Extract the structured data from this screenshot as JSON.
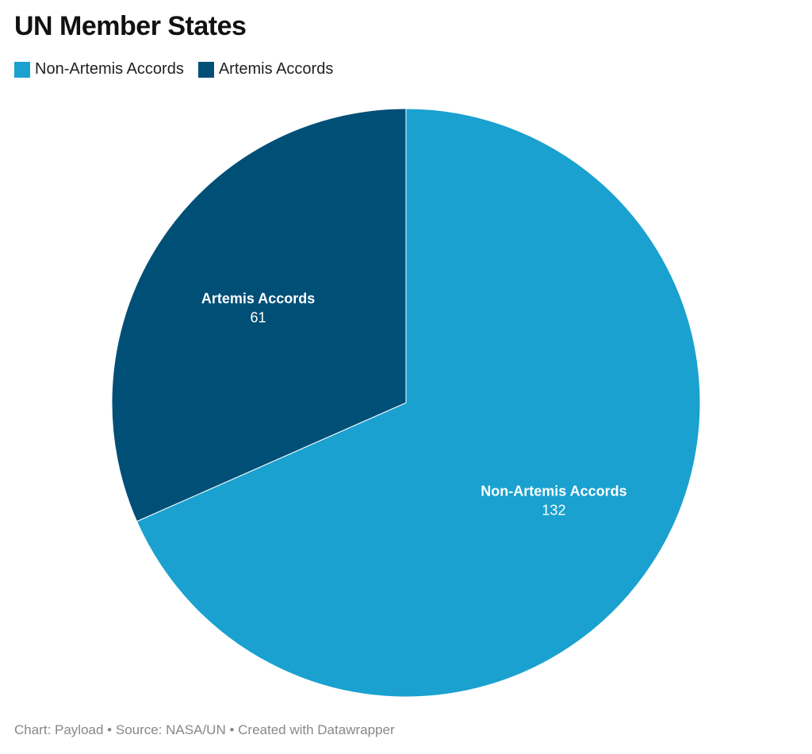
{
  "title": "UN Member States",
  "legend": [
    {
      "label": "Non-Artemis Accords",
      "color": "#1aa1cf"
    },
    {
      "label": "Artemis Accords",
      "color": "#004f77"
    }
  ],
  "footer": "Chart: Payload • Source: NASA/UN • Created with Datawrapper",
  "chart_data": {
    "type": "pie",
    "title": "UN Member States",
    "slices": [
      {
        "label": "Artemis Accords",
        "value": 61,
        "color": "#004f77"
      },
      {
        "label": "Non-Artemis Accords",
        "value": 132,
        "color": "#1aa1cf"
      }
    ],
    "legend_position": "top-left"
  }
}
